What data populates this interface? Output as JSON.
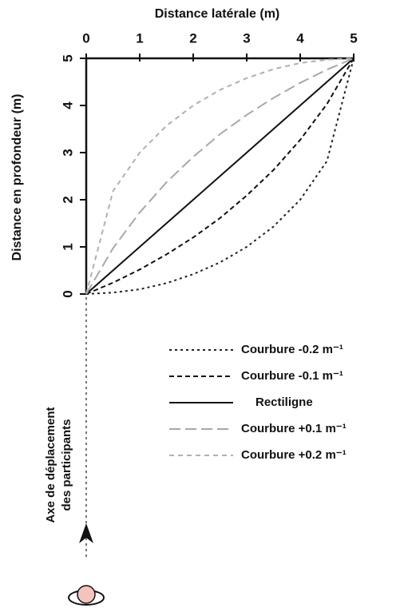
{
  "chart_data": {
    "type": "line",
    "xlabel": "Distance latérale (m)",
    "ylabel": "Distance en profondeur (m)",
    "annotation": [
      "Axe de déplacement",
      "des participants"
    ],
    "xlim": [
      0,
      5
    ],
    "ylim": [
      0,
      5
    ],
    "xticks": [
      0,
      1,
      2,
      3,
      4,
      5
    ],
    "yticks": [
      0,
      1,
      2,
      3,
      4,
      5
    ],
    "x": [
      0,
      0.5,
      1,
      1.5,
      2,
      2.5,
      3,
      3.5,
      4,
      4.5,
      5
    ],
    "series": [
      {
        "name": "Courbure -0.2 m⁻¹",
        "color": "#222222",
        "dash": "3,4",
        "values": [
          0,
          0.03,
          0.1,
          0.23,
          0.42,
          0.67,
          1,
          1.43,
          2,
          2.82,
          5
        ]
      },
      {
        "name": "Courbure -0.1 m⁻¹",
        "color": "#111111",
        "dash": "6,4",
        "values": [
          0,
          0.24,
          0.52,
          0.84,
          1.2,
          1.61,
          2.09,
          2.63,
          3.27,
          4.03,
          5
        ]
      },
      {
        "name": "Rectiligne",
        "color": "#111111",
        "dash": "none",
        "values": [
          0,
          0.5,
          1,
          1.5,
          2,
          2.5,
          3,
          3.5,
          4,
          4.5,
          5
        ]
      },
      {
        "name": "Courbure +0.1 m⁻¹",
        "color": "#a8a8a8",
        "dash": "14,6",
        "values": [
          0,
          0.97,
          1.73,
          2.37,
          2.91,
          3.39,
          3.8,
          4.16,
          4.48,
          4.76,
          5
        ]
      },
      {
        "name": "Courbure +0.2 m⁻¹",
        "color": "#b0b0b0",
        "dash": "6,5",
        "values": [
          0,
          2.18,
          3,
          3.57,
          4,
          4.33,
          4.58,
          4.77,
          4.9,
          4.97,
          5
        ]
      }
    ]
  }
}
